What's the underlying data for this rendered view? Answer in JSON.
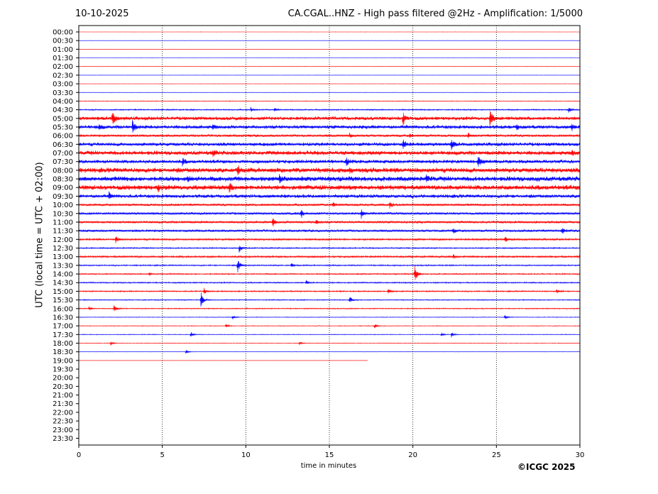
{
  "header": {
    "date": "10-10-2025",
    "title": "CA.CGAL..HNZ - High pass filtered @2Hz - Amplification: 1/5000"
  },
  "credit": "©ICGC 2025",
  "chart_data": {
    "type": "line",
    "xlabel": "time in minutes",
    "ylabel": "UTC (local time = UTC + 02:00)",
    "xlim": [
      0,
      30
    ],
    "xticks": [
      0,
      5,
      10,
      15,
      20,
      25,
      30
    ],
    "vertical_gridlines_at": [
      5,
      10,
      15,
      20,
      25
    ],
    "grid_style": "dotted",
    "row_labels": [
      "00:00",
      "00:30",
      "01:00",
      "01:30",
      "02:00",
      "02:30",
      "03:00",
      "03:30",
      "04:00",
      "04:30",
      "05:00",
      "05:30",
      "06:00",
      "06:30",
      "07:00",
      "07:30",
      "08:00",
      "08:30",
      "09:00",
      "09:30",
      "10:00",
      "10:30",
      "11:00",
      "11:30",
      "12:00",
      "12:30",
      "13:00",
      "13:30",
      "14:00",
      "14:30",
      "15:00",
      "15:30",
      "16:00",
      "16:30",
      "17:00",
      "17:30",
      "18:00",
      "18:30",
      "19:00",
      "19:30",
      "20:00",
      "20:30",
      "21:00",
      "21:30",
      "22:00",
      "22:30",
      "23:00",
      "23:30"
    ],
    "trace_colors": [
      "#ff0000",
      "#0000ff"
    ],
    "last_trace_row": "19:00",
    "last_trace_end_minutes": 17.3,
    "row_noise_level": [
      0.02,
      0.02,
      0.02,
      0.02,
      0.03,
      0.02,
      0.02,
      0.03,
      0.05,
      0.1,
      0.3,
      0.3,
      0.2,
      0.3,
      0.35,
      0.3,
      0.4,
      0.4,
      0.4,
      0.3,
      0.2,
      0.2,
      0.2,
      0.2,
      0.15,
      0.1,
      0.15,
      0.1,
      0.1,
      0.1,
      0.1,
      0.08,
      0.08,
      0.05,
      0.05,
      0.05,
      0.04,
      0.03,
      0.01
    ],
    "events": [
      {
        "row": "04:30",
        "minute": 10.3,
        "amplitude": 0.5
      },
      {
        "row": "04:30",
        "minute": 11.7,
        "amplitude": 0.5
      },
      {
        "row": "04:30",
        "minute": 29.3,
        "amplitude": 0.7
      },
      {
        "row": "05:00",
        "minute": 2.0,
        "amplitude": 2.0
      },
      {
        "row": "05:00",
        "minute": 19.4,
        "amplitude": 1.6
      },
      {
        "row": "05:00",
        "minute": 24.6,
        "amplitude": 2.0
      },
      {
        "row": "05:30",
        "minute": 1.2,
        "amplitude": 0.6
      },
      {
        "row": "05:30",
        "minute": 3.2,
        "amplitude": 1.4
      },
      {
        "row": "05:30",
        "minute": 8.0,
        "amplitude": 0.5
      },
      {
        "row": "05:30",
        "minute": 26.2,
        "amplitude": 0.6
      },
      {
        "row": "05:30",
        "minute": 29.5,
        "amplitude": 0.8
      },
      {
        "row": "06:00",
        "minute": 16.2,
        "amplitude": 0.5
      },
      {
        "row": "06:00",
        "minute": 19.8,
        "amplitude": 0.4
      },
      {
        "row": "06:00",
        "minute": 23.3,
        "amplitude": 0.5
      },
      {
        "row": "06:30",
        "minute": 19.4,
        "amplitude": 1.2
      },
      {
        "row": "06:30",
        "minute": 22.3,
        "amplitude": 1.0
      },
      {
        "row": "07:00",
        "minute": 8.0,
        "amplitude": 0.7
      },
      {
        "row": "07:00",
        "minute": 29.5,
        "amplitude": 0.6
      },
      {
        "row": "07:30",
        "minute": 6.2,
        "amplitude": 0.7
      },
      {
        "row": "07:30",
        "minute": 16.0,
        "amplitude": 0.8
      },
      {
        "row": "07:30",
        "minute": 23.9,
        "amplitude": 1.8
      },
      {
        "row": "08:00",
        "minute": 9.5,
        "amplitude": 0.9
      },
      {
        "row": "08:00",
        "minute": 16.2,
        "amplitude": 0.6
      },
      {
        "row": "08:30",
        "minute": 6.5,
        "amplitude": 0.7
      },
      {
        "row": "08:30",
        "minute": 12.0,
        "amplitude": 0.8
      },
      {
        "row": "08:30",
        "minute": 20.8,
        "amplitude": 0.6
      },
      {
        "row": "09:00",
        "minute": 4.7,
        "amplitude": 0.8
      },
      {
        "row": "09:00",
        "minute": 9.0,
        "amplitude": 1.0
      },
      {
        "row": "09:30",
        "minute": 1.8,
        "amplitude": 0.6
      },
      {
        "row": "10:00",
        "minute": 15.2,
        "amplitude": 0.6
      },
      {
        "row": "10:00",
        "minute": 18.6,
        "amplitude": 0.7
      },
      {
        "row": "10:30",
        "minute": 13.3,
        "amplitude": 1.0
      },
      {
        "row": "10:30",
        "minute": 16.9,
        "amplitude": 1.0
      },
      {
        "row": "11:00",
        "minute": 11.6,
        "amplitude": 1.0
      },
      {
        "row": "11:00",
        "minute": 14.2,
        "amplitude": 0.6
      },
      {
        "row": "11:30",
        "minute": 22.4,
        "amplitude": 0.5
      },
      {
        "row": "11:30",
        "minute": 28.9,
        "amplitude": 0.8
      },
      {
        "row": "12:00",
        "minute": 2.2,
        "amplitude": 0.8
      },
      {
        "row": "12:00",
        "minute": 25.5,
        "amplitude": 0.6
      },
      {
        "row": "12:30",
        "minute": 9.6,
        "amplitude": 0.8
      },
      {
        "row": "13:00",
        "minute": 22.4,
        "amplitude": 0.5
      },
      {
        "row": "13:00",
        "minute": 30.0,
        "amplitude": 1.0
      },
      {
        "row": "13:30",
        "minute": 9.5,
        "amplitude": 1.6
      },
      {
        "row": "13:30",
        "minute": 12.7,
        "amplitude": 0.5
      },
      {
        "row": "14:00",
        "minute": 20.1,
        "amplitude": 2.4
      },
      {
        "row": "14:00",
        "minute": 4.2,
        "amplitude": 0.4
      },
      {
        "row": "14:30",
        "minute": 13.6,
        "amplitude": 0.5
      },
      {
        "row": "15:00",
        "minute": 7.5,
        "amplitude": 0.6
      },
      {
        "row": "15:00",
        "minute": 18.5,
        "amplitude": 0.6
      },
      {
        "row": "15:00",
        "minute": 28.6,
        "amplitude": 0.5
      },
      {
        "row": "15:30",
        "minute": 7.3,
        "amplitude": 1.8
      },
      {
        "row": "15:30",
        "minute": 16.2,
        "amplitude": 0.8
      },
      {
        "row": "16:00",
        "minute": 2.1,
        "amplitude": 1.0
      },
      {
        "row": "16:00",
        "minute": 0.6,
        "amplitude": 0.5
      },
      {
        "row": "16:30",
        "minute": 9.2,
        "amplitude": 0.6
      },
      {
        "row": "16:30",
        "minute": 25.5,
        "amplitude": 0.6
      },
      {
        "row": "17:00",
        "minute": 8.8,
        "amplitude": 0.5
      },
      {
        "row": "17:00",
        "minute": 17.7,
        "amplitude": 0.5
      },
      {
        "row": "17:30",
        "minute": 6.7,
        "amplitude": 0.6
      },
      {
        "row": "17:30",
        "minute": 22.3,
        "amplitude": 0.6
      },
      {
        "row": "17:30",
        "minute": 21.7,
        "amplitude": 0.5
      },
      {
        "row": "18:00",
        "minute": 1.9,
        "amplitude": 0.5
      },
      {
        "row": "18:00",
        "minute": 13.2,
        "amplitude": 0.4
      },
      {
        "row": "18:30",
        "minute": 6.4,
        "amplitude": 0.5
      }
    ]
  }
}
